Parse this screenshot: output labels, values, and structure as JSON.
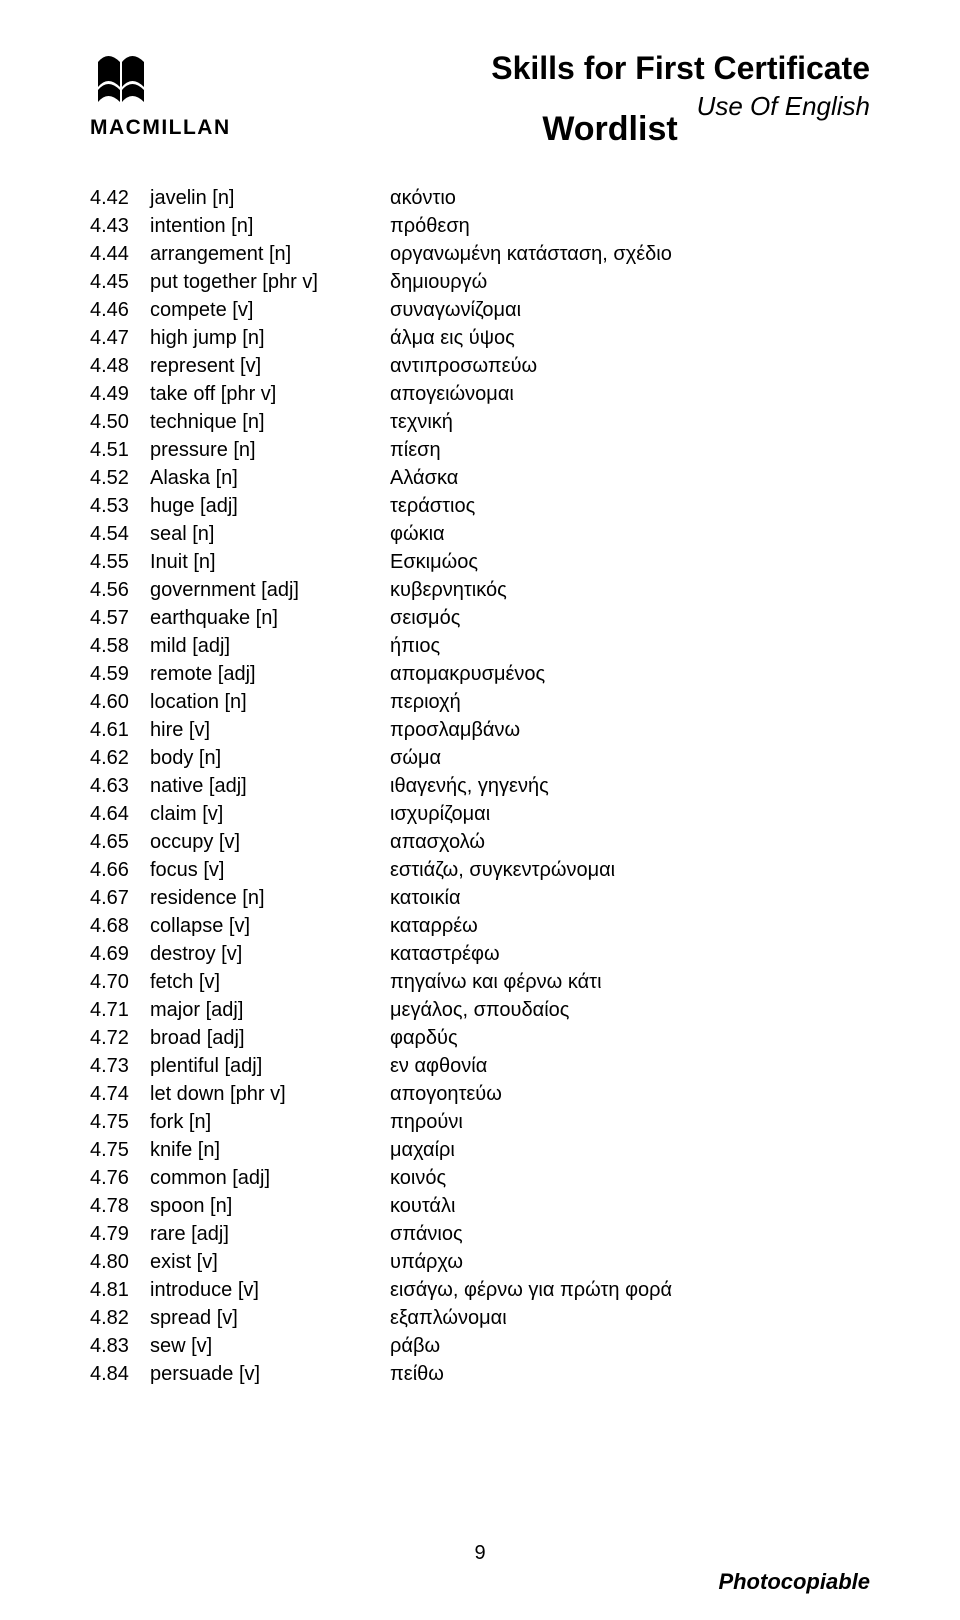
{
  "logo_text": "MACMILLAN",
  "main_title": "Skills for First Certificate",
  "subtitle": "Use Of English",
  "wordlist_title": "Wordlist",
  "page_number": "9",
  "footer_text": "Photocopiable",
  "entries": [
    {
      "num": "4.42",
      "term": "javelin [n]",
      "def": "ακόντιο"
    },
    {
      "num": "4.43",
      "term": "intention [n]",
      "def": "πρόθεση"
    },
    {
      "num": "4.44",
      "term": "arrangement [n]",
      "def": "οργανωμένη κατάσταση, σχέδιο"
    },
    {
      "num": "4.45",
      "term": "put together [phr v]",
      "def": "δημιουργώ"
    },
    {
      "num": "4.46",
      "term": "compete [v]",
      "def": "συναγωνίζομαι"
    },
    {
      "num": "4.47",
      "term": "high jump [n]",
      "def": "άλμα εις ύψος"
    },
    {
      "num": "4.48",
      "term": "represent [v]",
      "def": "αντιπροσωπεύω"
    },
    {
      "num": "4.49",
      "term": "take off [phr v]",
      "def": "απογειώνομαι"
    },
    {
      "num": "4.50",
      "term": "technique [n]",
      "def": "τεχνική"
    },
    {
      "num": "4.51",
      "term": "pressure [n]",
      "def": "πίεση"
    },
    {
      "num": "4.52",
      "term": "Alaska [n]",
      "def": "Αλάσκα"
    },
    {
      "num": "4.53",
      "term": "huge [adj]",
      "def": "τεράστιος"
    },
    {
      "num": "4.54",
      "term": "seal [n]",
      "def": "φώκια"
    },
    {
      "num": "4.55",
      "term": "Inuit [n]",
      "def": "Εσκιμώος"
    },
    {
      "num": "4.56",
      "term": "government [adj]",
      "def": "κυβερνητικός"
    },
    {
      "num": "4.57",
      "term": "earthquake [n]",
      "def": "σεισμός"
    },
    {
      "num": "4.58",
      "term": "mild [adj]",
      "def": "ήπιος"
    },
    {
      "num": "4.59",
      "term": "remote [adj]",
      "def": "απομακρυσμένος"
    },
    {
      "num": "4.60",
      "term": "location [n]",
      "def": "περιοχή"
    },
    {
      "num": "4.61",
      "term": "hire [v]",
      "def": "προσλαμβάνω"
    },
    {
      "num": "4.62",
      "term": "body [n]",
      "def": "σώμα"
    },
    {
      "num": "4.63",
      "term": "native [adj]",
      "def": "ιθαγενής, γηγενής"
    },
    {
      "num": "4.64",
      "term": "claim [v]",
      "def": "ισχυρίζομαι"
    },
    {
      "num": "4.65",
      "term": "occupy [v]",
      "def": "απασχολώ"
    },
    {
      "num": "4.66",
      "term": "focus [v]",
      "def": "εστιάζω, συγκεντρώνομαι"
    },
    {
      "num": "4.67",
      "term": "residence [n]",
      "def": "κατοικία"
    },
    {
      "num": "4.68",
      "term": "collapse [v]",
      "def": "καταρρέω"
    },
    {
      "num": "4.69",
      "term": "destroy [v]",
      "def": "καταστρέφω"
    },
    {
      "num": "4.70",
      "term": "fetch [v]",
      "def": "πηγαίνω και φέρνω κάτι"
    },
    {
      "num": "4.71",
      "term": "major [adj]",
      "def": "μεγάλος, σπουδαίος"
    },
    {
      "num": "4.72",
      "term": "broad [adj]",
      "def": "φαρδύς"
    },
    {
      "num": "4.73",
      "term": "plentiful [adj]",
      "def": "εν αφθονία"
    },
    {
      "num": "4.74",
      "term": "let down [phr v]",
      "def": "απογοητεύω"
    },
    {
      "num": "4.75",
      "term": "fork [n]",
      "def": "πηρούνι"
    },
    {
      "num": "4.75",
      "term": "knife [n]",
      "def": "μαχαίρι"
    },
    {
      "num": "4.76",
      "term": "common [adj]",
      "def": "κοινός"
    },
    {
      "num": "4.78",
      "term": "spoon [n]",
      "def": "κουτάλι"
    },
    {
      "num": "4.79",
      "term": "rare [adj]",
      "def": "σπάνιος"
    },
    {
      "num": "4.80",
      "term": "exist [v]",
      "def": "υπάρχω"
    },
    {
      "num": "4.81",
      "term": "introduce [v]",
      "def": "εισάγω, φέρνω για πρώτη φορά"
    },
    {
      "num": "4.82",
      "term": "spread [v]",
      "def": "εξαπλώνομαι"
    },
    {
      "num": "4.83",
      "term": "sew [v]",
      "def": "ράβω"
    },
    {
      "num": "4.84",
      "term": "persuade [v]",
      "def": "πείθω"
    }
  ]
}
